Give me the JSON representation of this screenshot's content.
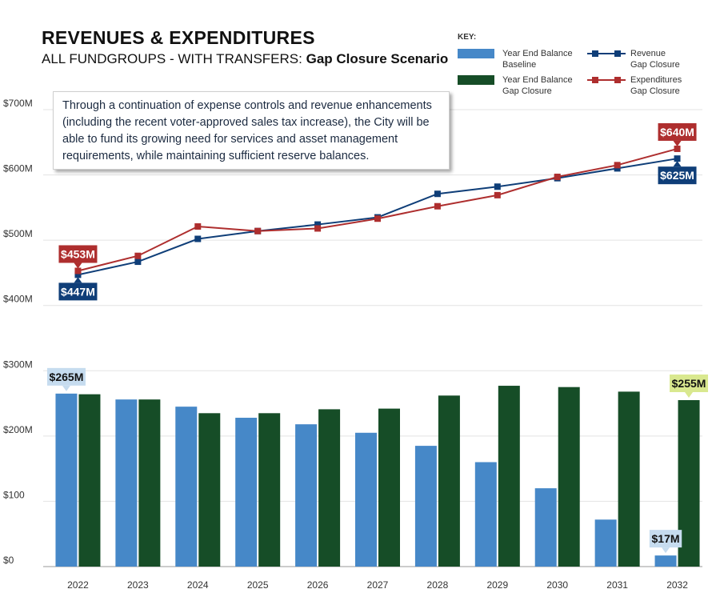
{
  "header": {
    "title": "REVENUES & EXPENDITURES",
    "subtitle_prefix": "ALL FUNDGROUPS - WITH TRANSFERS: ",
    "subtitle_bold": "Gap Closure Scenario"
  },
  "key": {
    "title": "KEY:",
    "items": [
      {
        "line1": "Year End Balance",
        "line2": "Baseline",
        "color": "#4688c8"
      },
      {
        "line1": "Year End Balance",
        "line2": "Gap Closure",
        "color": "#164d27"
      },
      {
        "line1": "Revenue",
        "line2": "Gap Closure",
        "color": "#0f3e78"
      },
      {
        "line1": "Expenditures",
        "line2": "Gap Closure",
        "color": "#ae2e2e"
      }
    ]
  },
  "callout": {
    "text": "Through a continuation of expense controls and revenue enhancements (including the recent voter-approved sales tax increase), the City will be able to fund its growing need for services and asset management requirements, while maintaining sufficient reserve balances."
  },
  "chart_data": {
    "type": "bar",
    "title": "REVENUES & EXPENDITURES",
    "categories": [
      "2022",
      "2023",
      "2024",
      "2025",
      "2026",
      "2027",
      "2028",
      "2029",
      "2030",
      "2031",
      "2032"
    ],
    "y_ticks": [
      {
        "value": 0,
        "label": "$0"
      },
      {
        "value": 100,
        "label": "$100"
      },
      {
        "value": 200,
        "label": "$200M"
      },
      {
        "value": 300,
        "label": "$300M"
      },
      {
        "value": 400,
        "label": "$400M"
      },
      {
        "value": 500,
        "label": "$500M"
      },
      {
        "value": 600,
        "label": "$600M"
      },
      {
        "value": 700,
        "label": "$700M"
      }
    ],
    "ylim": [
      0,
      700
    ],
    "grid": true,
    "bar_series": [
      {
        "name": "Year End Balance Baseline",
        "color": "#4688c8",
        "values": [
          265,
          256,
          245,
          228,
          218,
          205,
          185,
          160,
          120,
          72,
          17
        ]
      },
      {
        "name": "Year End Balance Gap Closure",
        "color": "#164d27",
        "values": [
          264,
          256,
          235,
          235,
          241,
          242,
          262,
          277,
          275,
          268,
          255
        ]
      }
    ],
    "line_series": [
      {
        "name": "Revenue Gap Closure",
        "color": "#0f3e78",
        "values": [
          447,
          467,
          502,
          514,
          524,
          535,
          571,
          582,
          595,
          610,
          625
        ]
      },
      {
        "name": "Expenditures Gap Closure",
        "color": "#ae2e2e",
        "values": [
          453,
          476,
          521,
          514,
          518,
          533,
          552,
          569,
          597,
          615,
          640
        ]
      }
    ],
    "annotations": [
      {
        "label": "$453M",
        "series": "Expenditures Gap Closure",
        "index": 0,
        "position": "above",
        "bg": "#ae2e2e",
        "fg": "#ffffff"
      },
      {
        "label": "$447M",
        "series": "Revenue Gap Closure",
        "index": 0,
        "position": "below",
        "bg": "#0f3e78",
        "fg": "#ffffff"
      },
      {
        "label": "$640M",
        "series": "Expenditures Gap Closure",
        "index": 10,
        "position": "above",
        "bg": "#ae2e2e",
        "fg": "#ffffff"
      },
      {
        "label": "$625M",
        "series": "Revenue Gap Closure",
        "index": 10,
        "position": "below",
        "bg": "#0f3e78",
        "fg": "#ffffff"
      },
      {
        "label": "$265M",
        "series": "Year End Balance Baseline",
        "index": 0,
        "position": "above",
        "bg": "#c6dcef",
        "fg": "#111111"
      },
      {
        "label": "$255M",
        "series": "Year End Balance Gap Closure",
        "index": 10,
        "position": "above",
        "bg": "#d9e88f",
        "fg": "#111111"
      },
      {
        "label": "$17M",
        "series": "Year End Balance Baseline",
        "index": 10,
        "position": "above",
        "bg": "#c6dcef",
        "fg": "#111111"
      }
    ]
  }
}
